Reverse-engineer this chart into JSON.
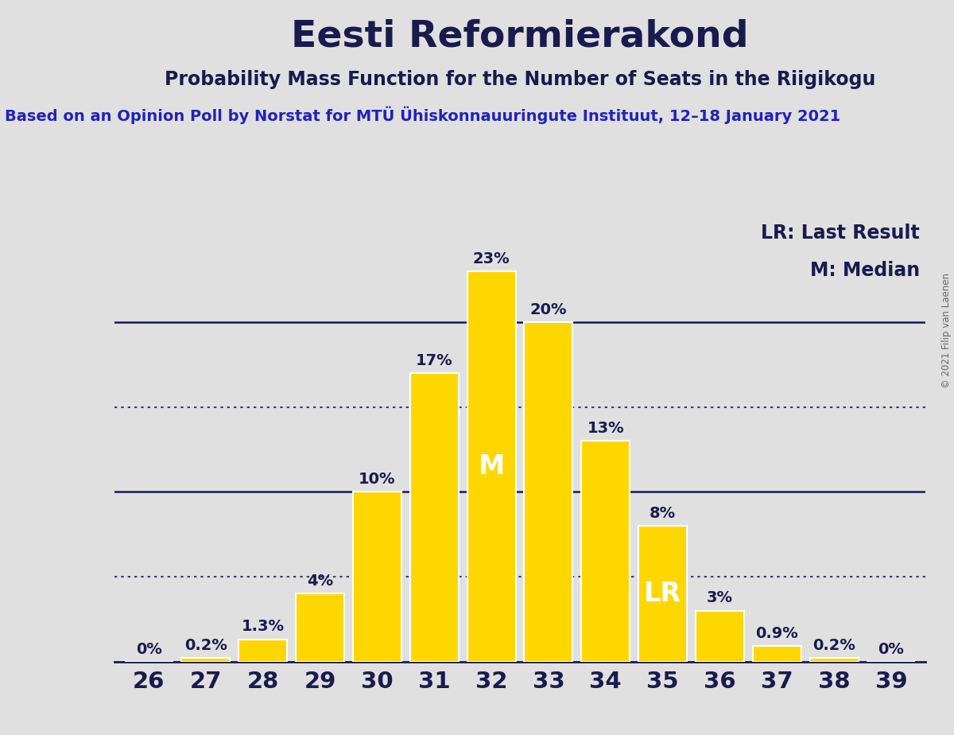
{
  "title": "Eesti Reformierakond",
  "subtitle": "Probability Mass Function for the Number of Seats in the Riigikogu",
  "source_line": "Based on an Opinion Poll by Norstat for MTÜ Ühiskonnauuringute Instituut, 12–18 January 2021",
  "copyright": "© 2021 Filip van Laenen",
  "seats": [
    26,
    27,
    28,
    29,
    30,
    31,
    32,
    33,
    34,
    35,
    36,
    37,
    38,
    39
  ],
  "probabilities": [
    0.0,
    0.2,
    1.3,
    4.0,
    10.0,
    17.0,
    23.0,
    20.0,
    13.0,
    8.0,
    3.0,
    0.9,
    0.2,
    0.0
  ],
  "labels": [
    "0%",
    "0.2%",
    "1.3%",
    "4%",
    "10%",
    "17%",
    "23%",
    "20%",
    "13%",
    "8%",
    "3%",
    "0.9%",
    "0.2%",
    "0%"
  ],
  "bar_color": "#FFD700",
  "bar_edge_color": "#FFFFFF",
  "background_color": "#E0E0E0",
  "text_color": "#1a1a4e",
  "median_seat": 32,
  "lr_seat": 35,
  "solid_yticks": [
    10,
    20
  ],
  "dotted_yticks": [
    5,
    15
  ],
  "ylim": [
    0,
    26
  ],
  "title_fontsize": 34,
  "subtitle_fontsize": 17,
  "source_fontsize": 14,
  "bar_label_fontsize": 14,
  "axis_tick_fontsize": 21,
  "ylabel_fontsize": 21,
  "legend_fontsize": 17,
  "median_label_fontsize": 24,
  "lr_label_fontsize": 24
}
